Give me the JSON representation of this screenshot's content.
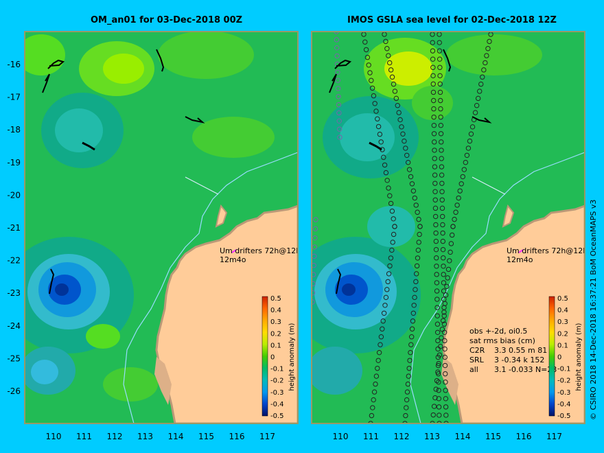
{
  "panels": {
    "left": {
      "title": "OM_an01 for 03-Dec-2018 00Z"
    },
    "right": {
      "title": "IMOS GSLA sea level  for 02-Dec-2018 12Z"
    }
  },
  "axes": {
    "lat_ticks": [
      "-16",
      "-17",
      "-18",
      "-19",
      "-20",
      "-21",
      "-22",
      "-23",
      "-24",
      "-25",
      "-26"
    ],
    "lon_ticks": [
      "110",
      "111",
      "112",
      "113",
      "114",
      "115",
      "116",
      "117"
    ]
  },
  "legend": {
    "drifters_line1": "Um   drifters 72h@12h",
    "drifters_line2": "12m4o"
  },
  "colorbar": {
    "label": "height anomaly (m)",
    "ticks": [
      "0.5",
      "0.4",
      "0.3",
      "0.2",
      "0.1",
      "0",
      "-0.1",
      "-0.2",
      "-0.3",
      "-0.4",
      "-0.5"
    ],
    "colors": [
      "#ff5500",
      "#ff9900",
      "#ffcc00",
      "#eeee00",
      "#ccee00",
      "#66dd00",
      "#00bb55",
      "#00aaaa",
      "#0088dd",
      "#0044cc",
      "#001188"
    ]
  },
  "stats": {
    "line1": "obs +-2d, oi0.5",
    "line2": "sat rms bias (cm)",
    "rows": [
      {
        "sat": "C2R",
        "vals": "3.3  0.55 m  81"
      },
      {
        "sat": "SRL",
        "vals": "3   -0.34 k  152"
      },
      {
        "sat": "all",
        "vals": "3.1  -0.033 N=23"
      }
    ]
  },
  "copyright": "© CSIRO 2018   14-Dec-2018 16:37:21 BoM OceanMAPS v3",
  "colors": {
    "background": "#00ccff",
    "ocean_base": "#11aa55",
    "land": "#ffcc99",
    "coast_shade": "#bb9977"
  }
}
